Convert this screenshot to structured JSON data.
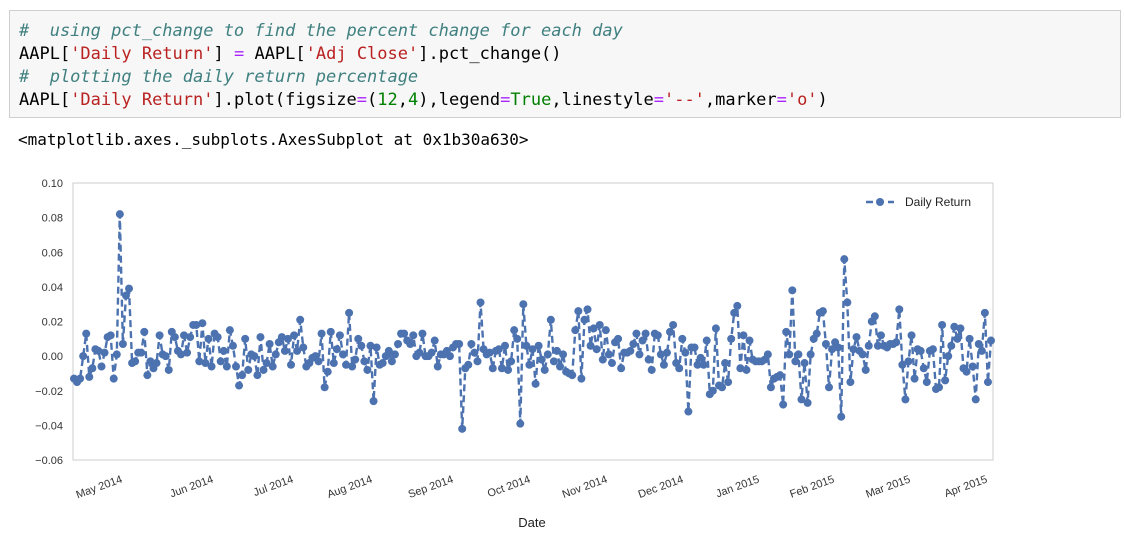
{
  "code_cell": {
    "line1_comment": "#  using pct_change to find the percent change for each day",
    "line2_a": "AAPL[",
    "line2_b": "'Daily Return'",
    "line2_c": "] ",
    "line2_d": "=",
    "line2_e": " AAPL[",
    "line2_f": "'Adj Close'",
    "line2_g": "].pct_change()",
    "line3_comment": "#  plotting the daily return percentage",
    "line4_a": "AAPL[",
    "line4_b": "'Daily Return'",
    "line4_c": "].plot(figsize",
    "line4_d": "=",
    "line4_e": "(",
    "line4_f": "12",
    "line4_g": ",",
    "line4_h": "4",
    "line4_i": "),legend",
    "line4_j": "=",
    "line4_k": "True",
    "line4_l": ",linestyle",
    "line4_m": "=",
    "line4_n": "'--'",
    "line4_o": ",marker",
    "line4_p": "=",
    "line4_q": "'o'",
    "line4_r": ")"
  },
  "output": {
    "repr": "<matplotlib.axes._subplots.AxesSubplot at 0x1b30a630>"
  },
  "chart_data": {
    "type": "line",
    "xlabel": "Date",
    "ylabel": "",
    "ylim": [
      -0.06,
      0.1
    ],
    "y_ticks": [
      -0.06,
      -0.04,
      -0.02,
      0.0,
      0.02,
      0.04,
      0.06,
      0.08,
      0.1
    ],
    "y_tick_labels": [
      "−0.06",
      "−0.04",
      "−0.02",
      "0.00",
      "0.02",
      "0.04",
      "0.06",
      "0.08",
      "0.10"
    ],
    "x_tick_labels": [
      "May 2014",
      "Jun 2014",
      "Jul 2014",
      "Aug 2014",
      "Sep 2014",
      "Oct 2014",
      "Nov 2014",
      "Dec 2014",
      "Jan 2015",
      "Feb 2015",
      "Mar 2015",
      "Apr 2015"
    ],
    "legend": {
      "label": "Daily Return",
      "position": "top-right"
    },
    "grid": true,
    "series_color": "#4c72b0",
    "series": [
      {
        "name": "Daily Return",
        "values": [
          -0.013,
          -0.015,
          -0.013,
          0.0,
          0.013,
          -0.012,
          -0.007,
          0.004,
          0.003,
          -0.006,
          0.002,
          0.011,
          0.012,
          -0.013,
          0.001,
          0.082,
          0.007,
          0.035,
          0.039,
          -0.004,
          -0.003,
          0.002,
          0.002,
          0.014,
          -0.011,
          -0.003,
          -0.007,
          -0.004,
          0.012,
          0.001,
          0.0,
          -0.008,
          0.014,
          0.011,
          0.003,
          0.001,
          0.012,
          0.002,
          0.011,
          0.018,
          0.018,
          -0.003,
          0.019,
          -0.004,
          0.01,
          -0.006,
          0.013,
          0.011,
          -0.003,
          0.003,
          -0.006,
          0.015,
          0.006,
          -0.006,
          -0.017,
          -0.011,
          0.01,
          -0.008,
          0.001,
          0.0,
          -0.011,
          0.011,
          -0.008,
          -0.004,
          0.007,
          -0.006,
          0.001,
          0.008,
          0.011,
          0.003,
          0.01,
          -0.005,
          0.012,
          0.003,
          0.021,
          0.005,
          -0.006,
          -0.004,
          -0.001,
          0.0,
          -0.003,
          0.013,
          -0.018,
          -0.009,
          0.014,
          -0.004,
          0.004,
          0.012,
          0.001,
          -0.005,
          0.025,
          -0.006,
          -0.002,
          0.01,
          0.006,
          -0.003,
          -0.008,
          0.006,
          -0.026,
          0.005,
          -0.005,
          -0.004,
          0.0,
          0.003,
          -0.003,
          0.001,
          0.007,
          0.013,
          0.013,
          0.009,
          0.007,
          0.012,
          0.0,
          0.002,
          0.013,
          0.0,
          0.0,
          0.002,
          0.009,
          -0.006,
          0.001,
          0.001,
          0.003,
          0.0,
          0.005,
          0.007,
          0.007,
          -0.042,
          -0.007,
          -0.005,
          0.007,
          0.002,
          -0.003,
          0.031,
          0.004,
          0.001,
          0.002,
          -0.007,
          0.003,
          0.004,
          -0.007,
          0.006,
          -0.008,
          -0.003,
          0.015,
          0.01,
          -0.039,
          0.03,
          0.006,
          -0.005,
          0.004,
          -0.016,
          0.006,
          -0.002,
          -0.008,
          0.001,
          0.021,
          -0.003,
          0.003,
          -0.006,
          0.001,
          -0.009,
          -0.01,
          -0.011,
          0.015,
          0.026,
          -0.013,
          0.021,
          0.027,
          0.006,
          0.016,
          0.004,
          0.018,
          -0.002,
          0.015,
          0.001,
          -0.004,
          0.008,
          0.01,
          -0.007,
          0.002,
          0.002,
          0.003,
          0.007,
          0.013,
          0.001,
          0.009,
          0.013,
          -0.002,
          -0.008,
          0.013,
          0.012,
          0.001,
          -0.005,
          0.002,
          0.014,
          0.018,
          -0.004,
          -0.007,
          0.01,
          0.002,
          -0.032,
          0.005,
          0.005,
          -0.005,
          -0.001,
          -0.005,
          0.009,
          -0.022,
          -0.02,
          0.016,
          -0.017,
          -0.018,
          -0.004,
          -0.015,
          0.01,
          0.025,
          0.029,
          -0.007,
          0.012,
          -0.008,
          0.009,
          -0.002,
          -0.003,
          -0.003,
          -0.003,
          -0.002,
          0.001,
          -0.018,
          -0.013,
          -0.012,
          -0.011,
          -0.028,
          0.014,
          0.001,
          0.038,
          -0.003,
          0.001,
          -0.025,
          -0.004,
          -0.027,
          0.001,
          0.01,
          0.013,
          0.025,
          0.026,
          0.007,
          -0.018,
          0.004,
          0.008,
          0.005,
          -0.035,
          0.056,
          0.031,
          -0.015,
          0.004,
          0.011,
          0.003,
          0.001,
          -0.008,
          0.006,
          0.02,
          0.023,
          0.006,
          0.012,
          0.006,
          0.005,
          0.007,
          0.007,
          0.008,
          0.027,
          -0.005,
          -0.025,
          -0.003,
          0.012,
          -0.013,
          0.004,
          0.003,
          -0.007,
          -0.015,
          0.003,
          0.004,
          -0.019,
          -0.018,
          0.018,
          -0.014,
          0.0,
          0.006,
          0.017,
          0.01,
          0.016,
          -0.007,
          -0.009,
          0.01,
          -0.006,
          -0.025,
          0.007,
          0.003,
          0.025,
          -0.015,
          0.009
        ]
      }
    ]
  }
}
